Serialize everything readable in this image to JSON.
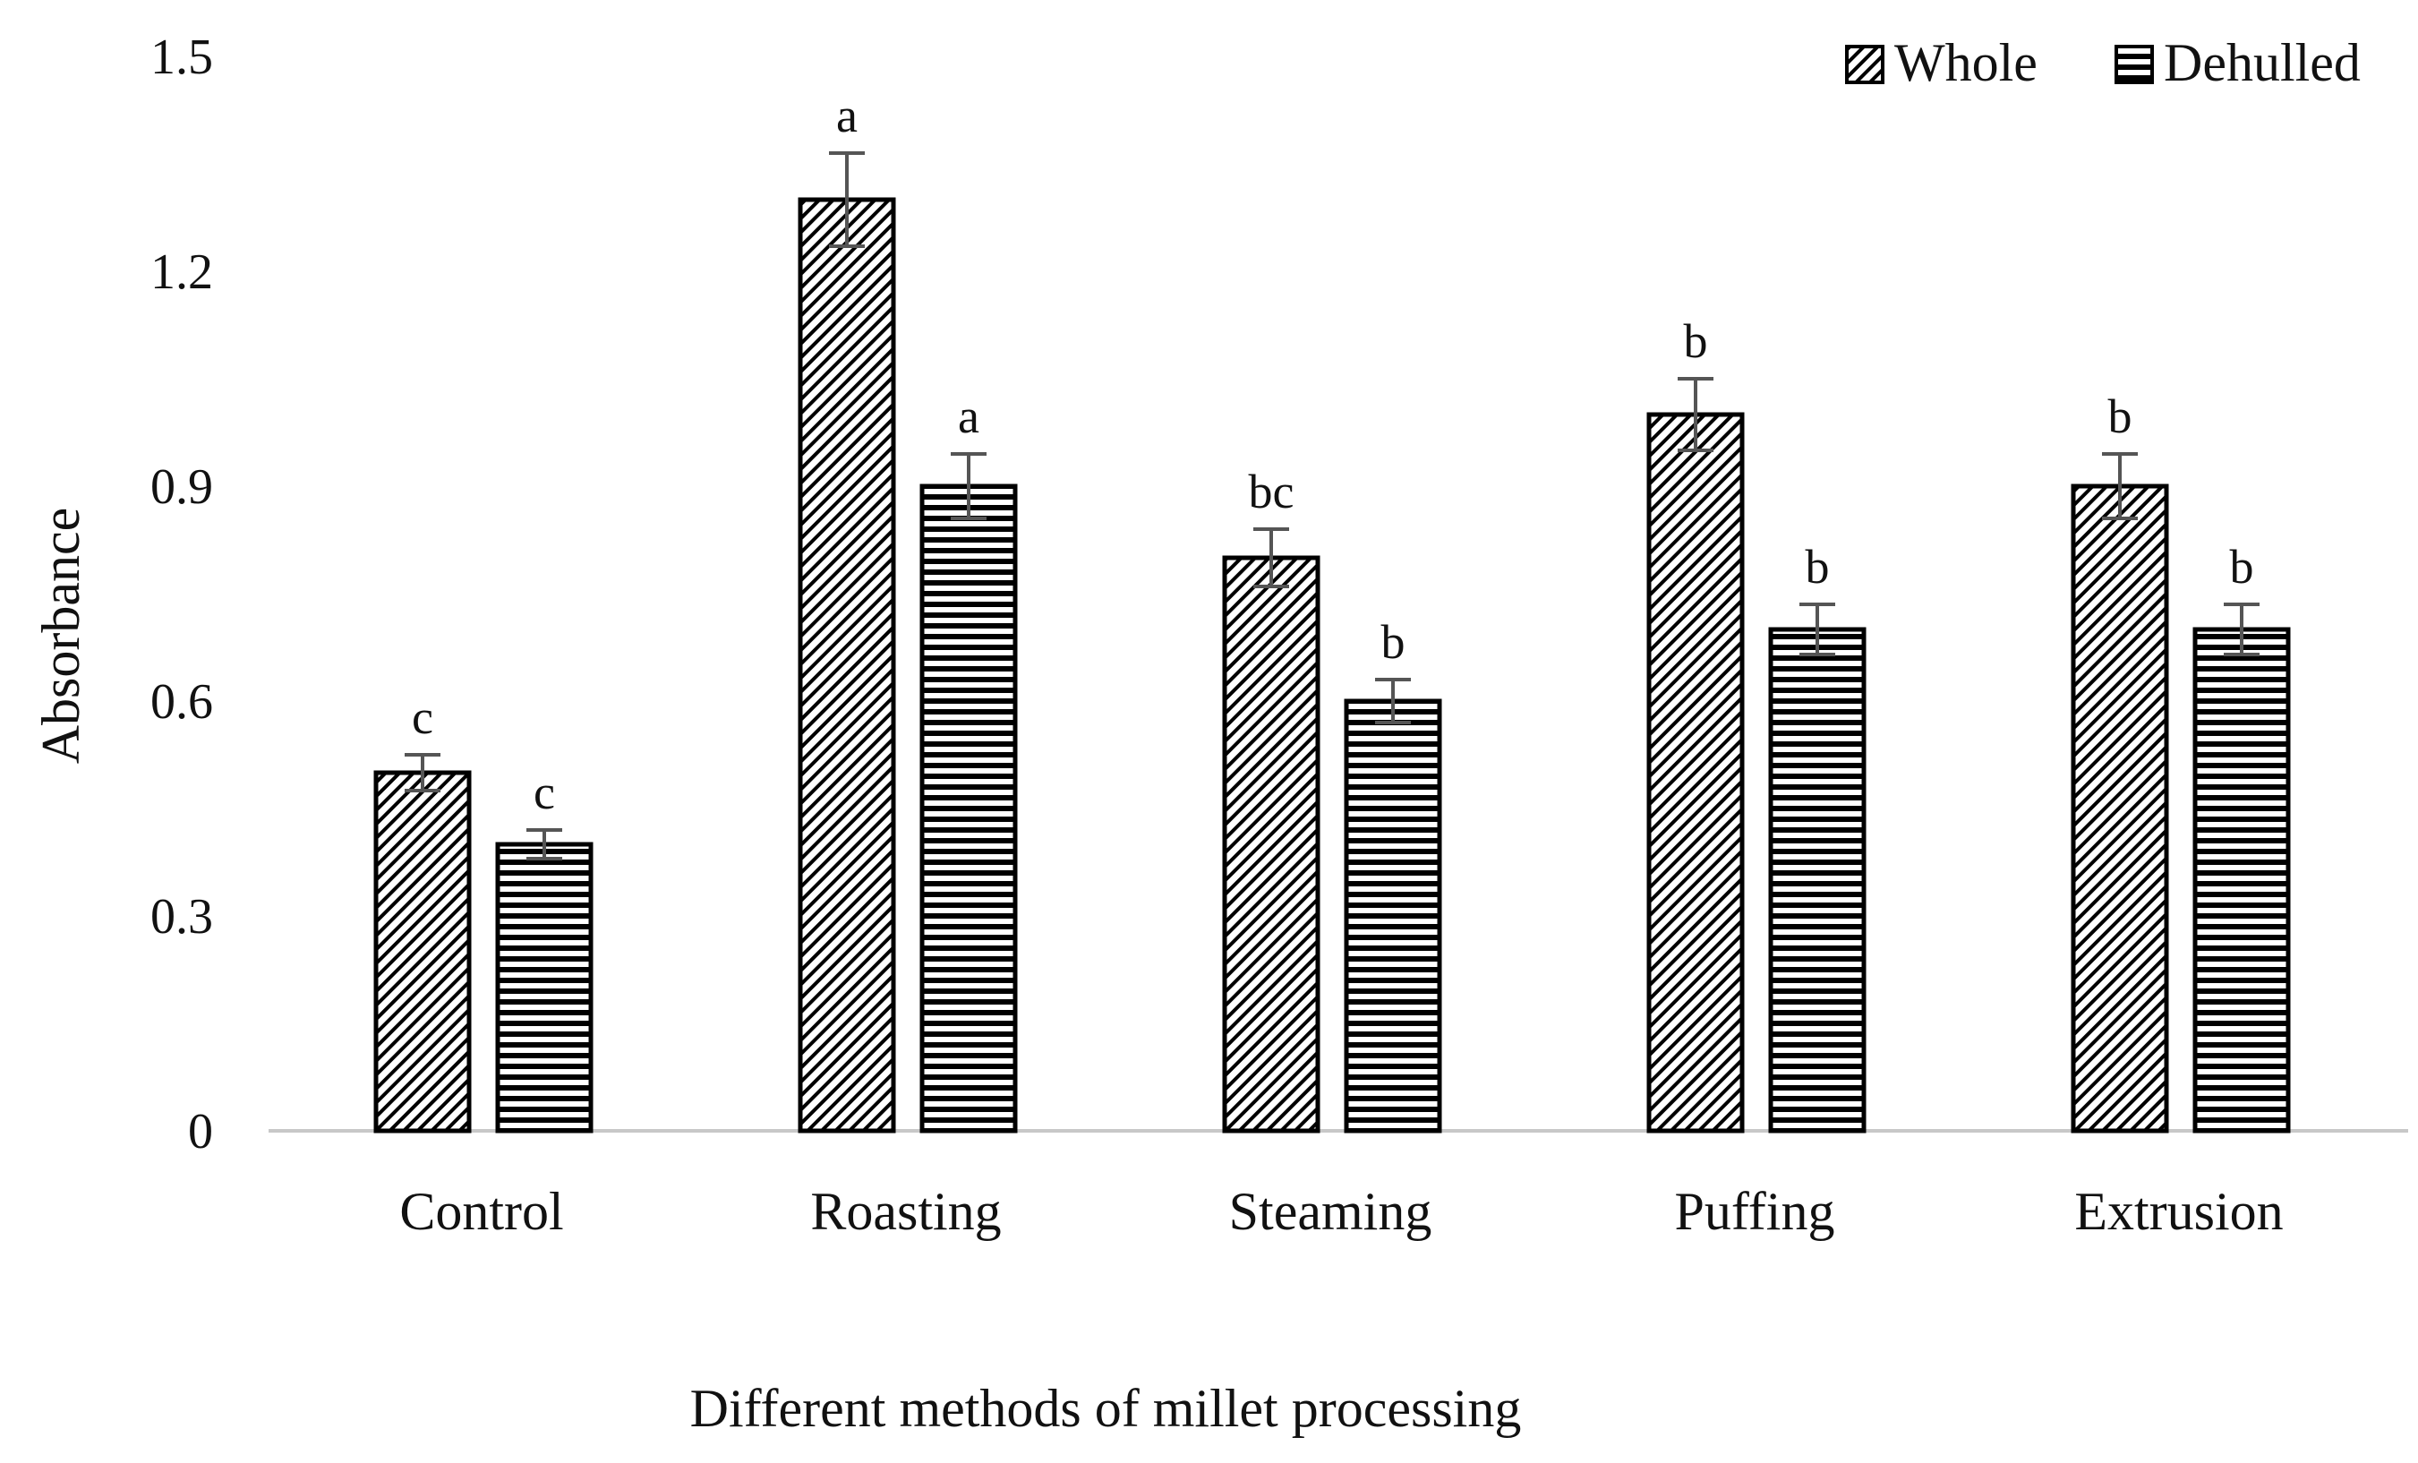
{
  "chart_data": {
    "type": "bar",
    "title": "",
    "xlabel": "Different methods of millet processing",
    "ylabel": "Absorbance",
    "ylim": [
      0,
      1.5
    ],
    "yticks": [
      0,
      0.3,
      0.6,
      0.9,
      1.2,
      1.5
    ],
    "ytick_labels": [
      "0",
      "0.3",
      "0.6",
      "0.9",
      "1.2",
      "1.5"
    ],
    "grid": false,
    "legend_position": "top-right",
    "categories": [
      "Control",
      "Roasting",
      "Steaming",
      "Puffing",
      "Extrusion"
    ],
    "series": [
      {
        "name": "Whole",
        "pattern": "diagonal-hatch",
        "values": [
          0.5,
          1.3,
          0.8,
          1.0,
          0.9
        ],
        "errors": [
          0.025,
          0.065,
          0.04,
          0.05,
          0.045
        ],
        "labels": [
          "c",
          "a",
          "bc",
          "b",
          "b"
        ]
      },
      {
        "name": "Dehulled",
        "pattern": "horizontal-lines",
        "values": [
          0.4,
          0.9,
          0.6,
          0.7,
          0.7
        ],
        "errors": [
          0.02,
          0.045,
          0.03,
          0.035,
          0.035
        ],
        "labels": [
          "c",
          "a",
          "b",
          "b",
          "b"
        ]
      }
    ]
  }
}
